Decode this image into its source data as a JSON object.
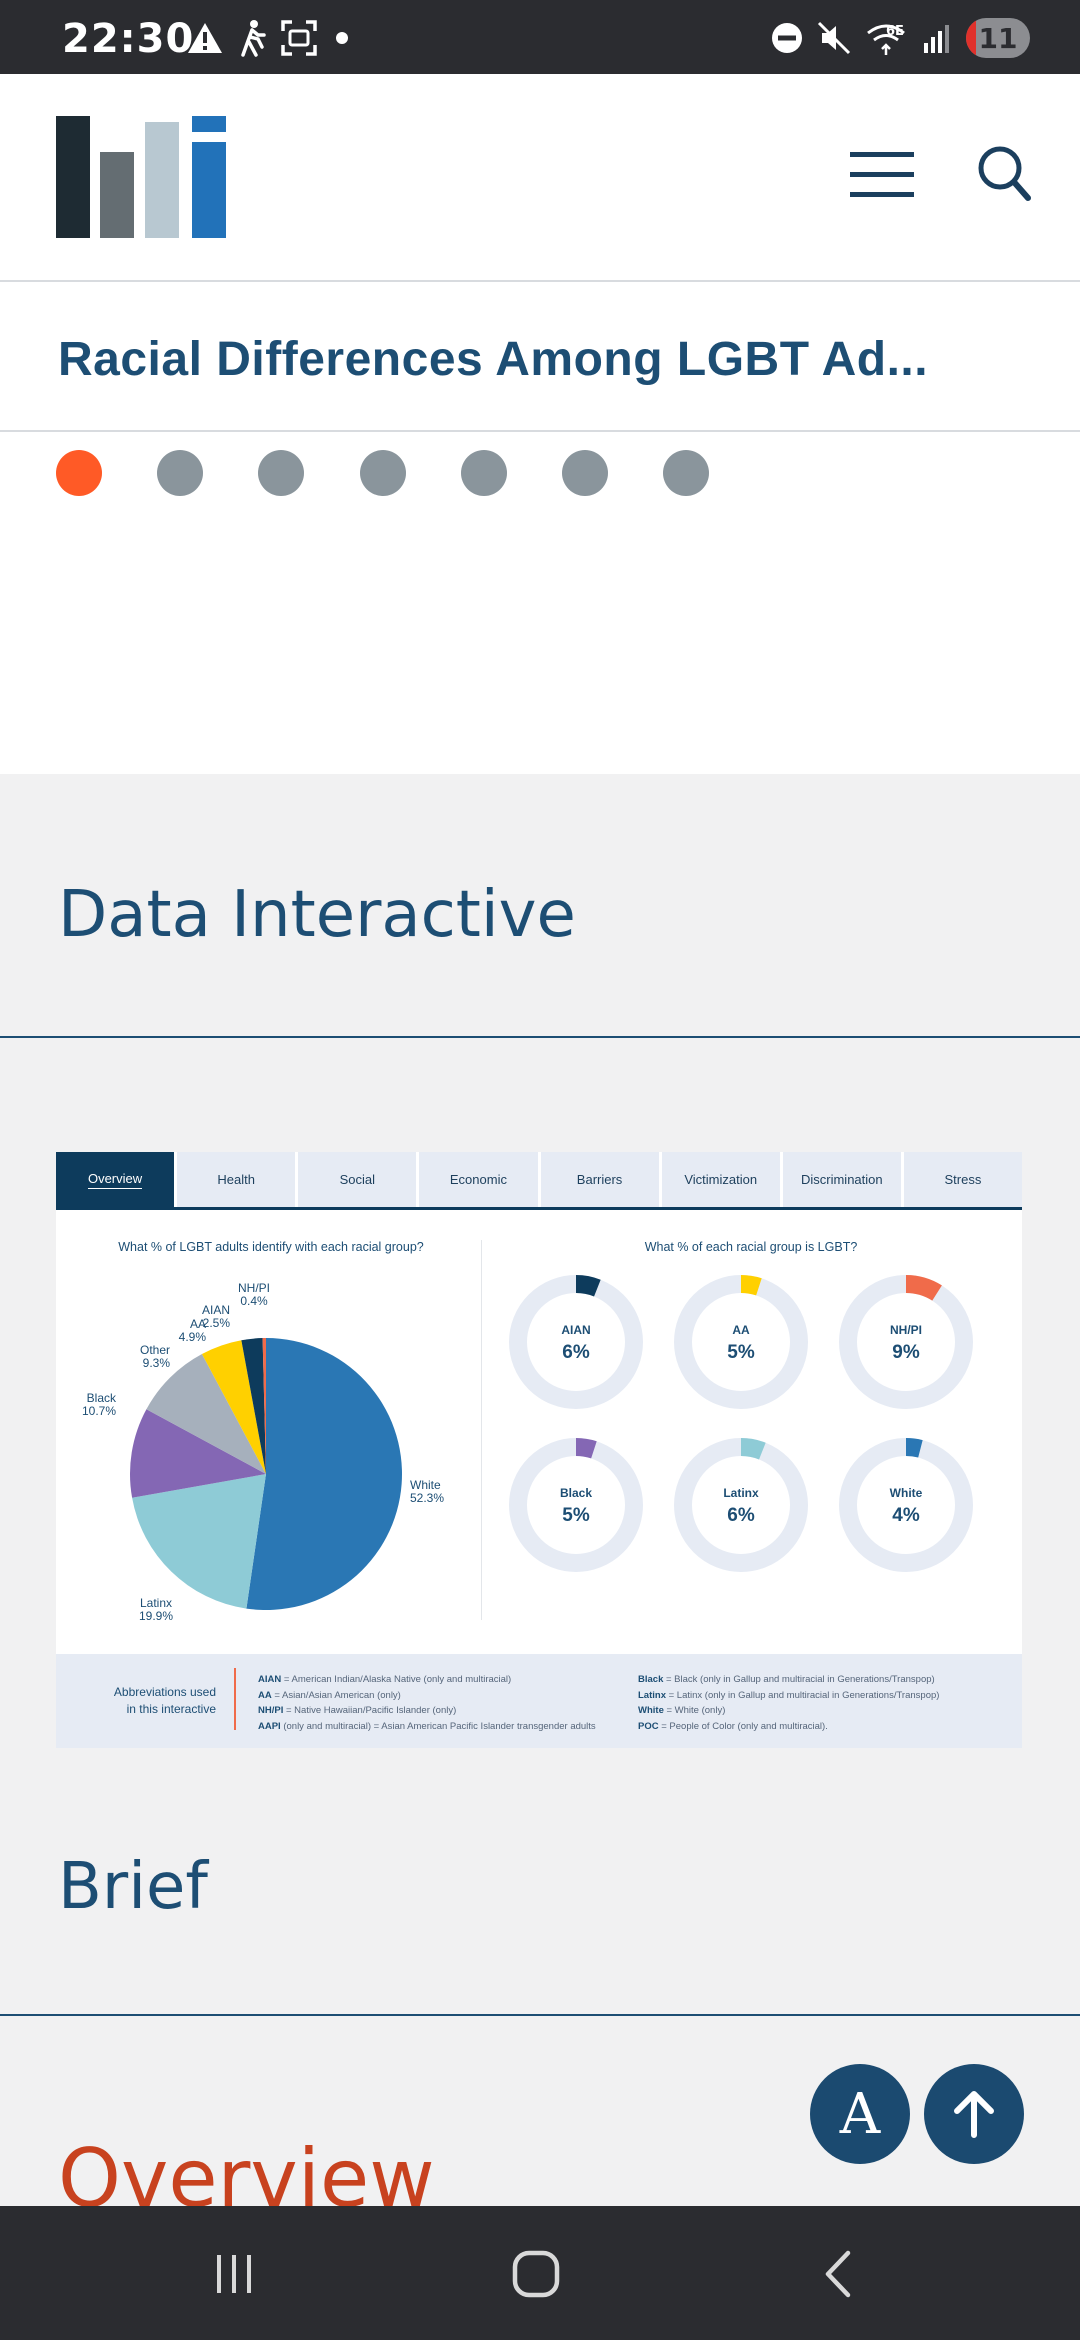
{
  "status_bar": {
    "time": "22:30",
    "battery": "11",
    "icons_left": [
      "warning-icon",
      "walking-icon",
      "screenshot-icon",
      "dot-icon"
    ],
    "icons_right": [
      "do-not-disturb-icon",
      "mute-icon",
      "wifi-6e-icon",
      "signal-icon"
    ]
  },
  "header": {
    "logo_colors": [
      "#1e2b33",
      "#646d72",
      "#b8c8d1",
      "#2272b9"
    ],
    "menu_icon": "hamburger-menu-icon",
    "search_icon": "search-icon"
  },
  "page": {
    "title": "Racial Differences Among LGBT Ad...",
    "carousel_dots": 7,
    "active_dot": 0,
    "section_data": "Data Interactive",
    "section_brief": "Brief",
    "section_overview": "Overview"
  },
  "interactive": {
    "tabs": [
      "Overview",
      "Health",
      "Social",
      "Economic",
      "Barriers",
      "Victimization",
      "Discrimination",
      "Stress"
    ],
    "active_tab": "Overview",
    "left_question": "What % of LGBT adults identify with each racial group?",
    "right_question": "What % of each racial group is LGBT?",
    "abbr_title_line1": "Abbreviations used",
    "abbr_title_line2": "in this interactive",
    "abbr_left": [
      {
        "key": "AIAN",
        "text": " = American Indian/Alaska Native (only and multiracial)"
      },
      {
        "key": "AA",
        "text": " = Asian/Asian American (only)"
      },
      {
        "key": "NH/PI",
        "text": " = Native Hawaiian/Pacific Islander (only)"
      },
      {
        "key": "AAPI",
        "text": " (only and multiracial) = Asian American Pacific Islander transgender adults"
      }
    ],
    "abbr_right": [
      {
        "key": "Black",
        "text": " = Black (only in Gallup and multiracial in Generations/Transpop)"
      },
      {
        "key": "Latinx",
        "text": " = Latinx (only in Gallup and multiracial in Generations/Transpop)"
      },
      {
        "key": "White",
        "text": " = White (only)"
      },
      {
        "key": "POC",
        "text": " = People of Color (only and multiracial)."
      }
    ]
  },
  "chart_data": [
    {
      "type": "pie",
      "title": "What % of LGBT adults identify with each racial group?",
      "categories": [
        "White",
        "Latinx",
        "Black",
        "Other",
        "AA",
        "AIAN",
        "NH/PI"
      ],
      "values": [
        52.3,
        19.9,
        10.7,
        9.3,
        4.9,
        2.5,
        0.4
      ],
      "labels": [
        "52.3%",
        "19.9%",
        "10.7%",
        "9.3%",
        "4.9%",
        "2.5%",
        "0.4%"
      ],
      "colors": [
        "#2a77b4",
        "#8ecbd6",
        "#8467b4",
        "#a6b0bc",
        "#ffd000",
        "#0d3b5c",
        "#f06b4a"
      ]
    },
    {
      "type": "pie",
      "title": "What % of each racial group is LGBT?",
      "categories": [
        "AIAN",
        "AA",
        "NH/PI",
        "Black",
        "Latinx",
        "White"
      ],
      "values": [
        6,
        5,
        9,
        5,
        6,
        4
      ],
      "labels": [
        "6%",
        "5%",
        "9%",
        "5%",
        "6%",
        "4%"
      ],
      "colors": [
        "#0d3b5c",
        "#ffd000",
        "#f06b4a",
        "#8467b4",
        "#8ecbd6",
        "#2a77b4"
      ]
    }
  ]
}
